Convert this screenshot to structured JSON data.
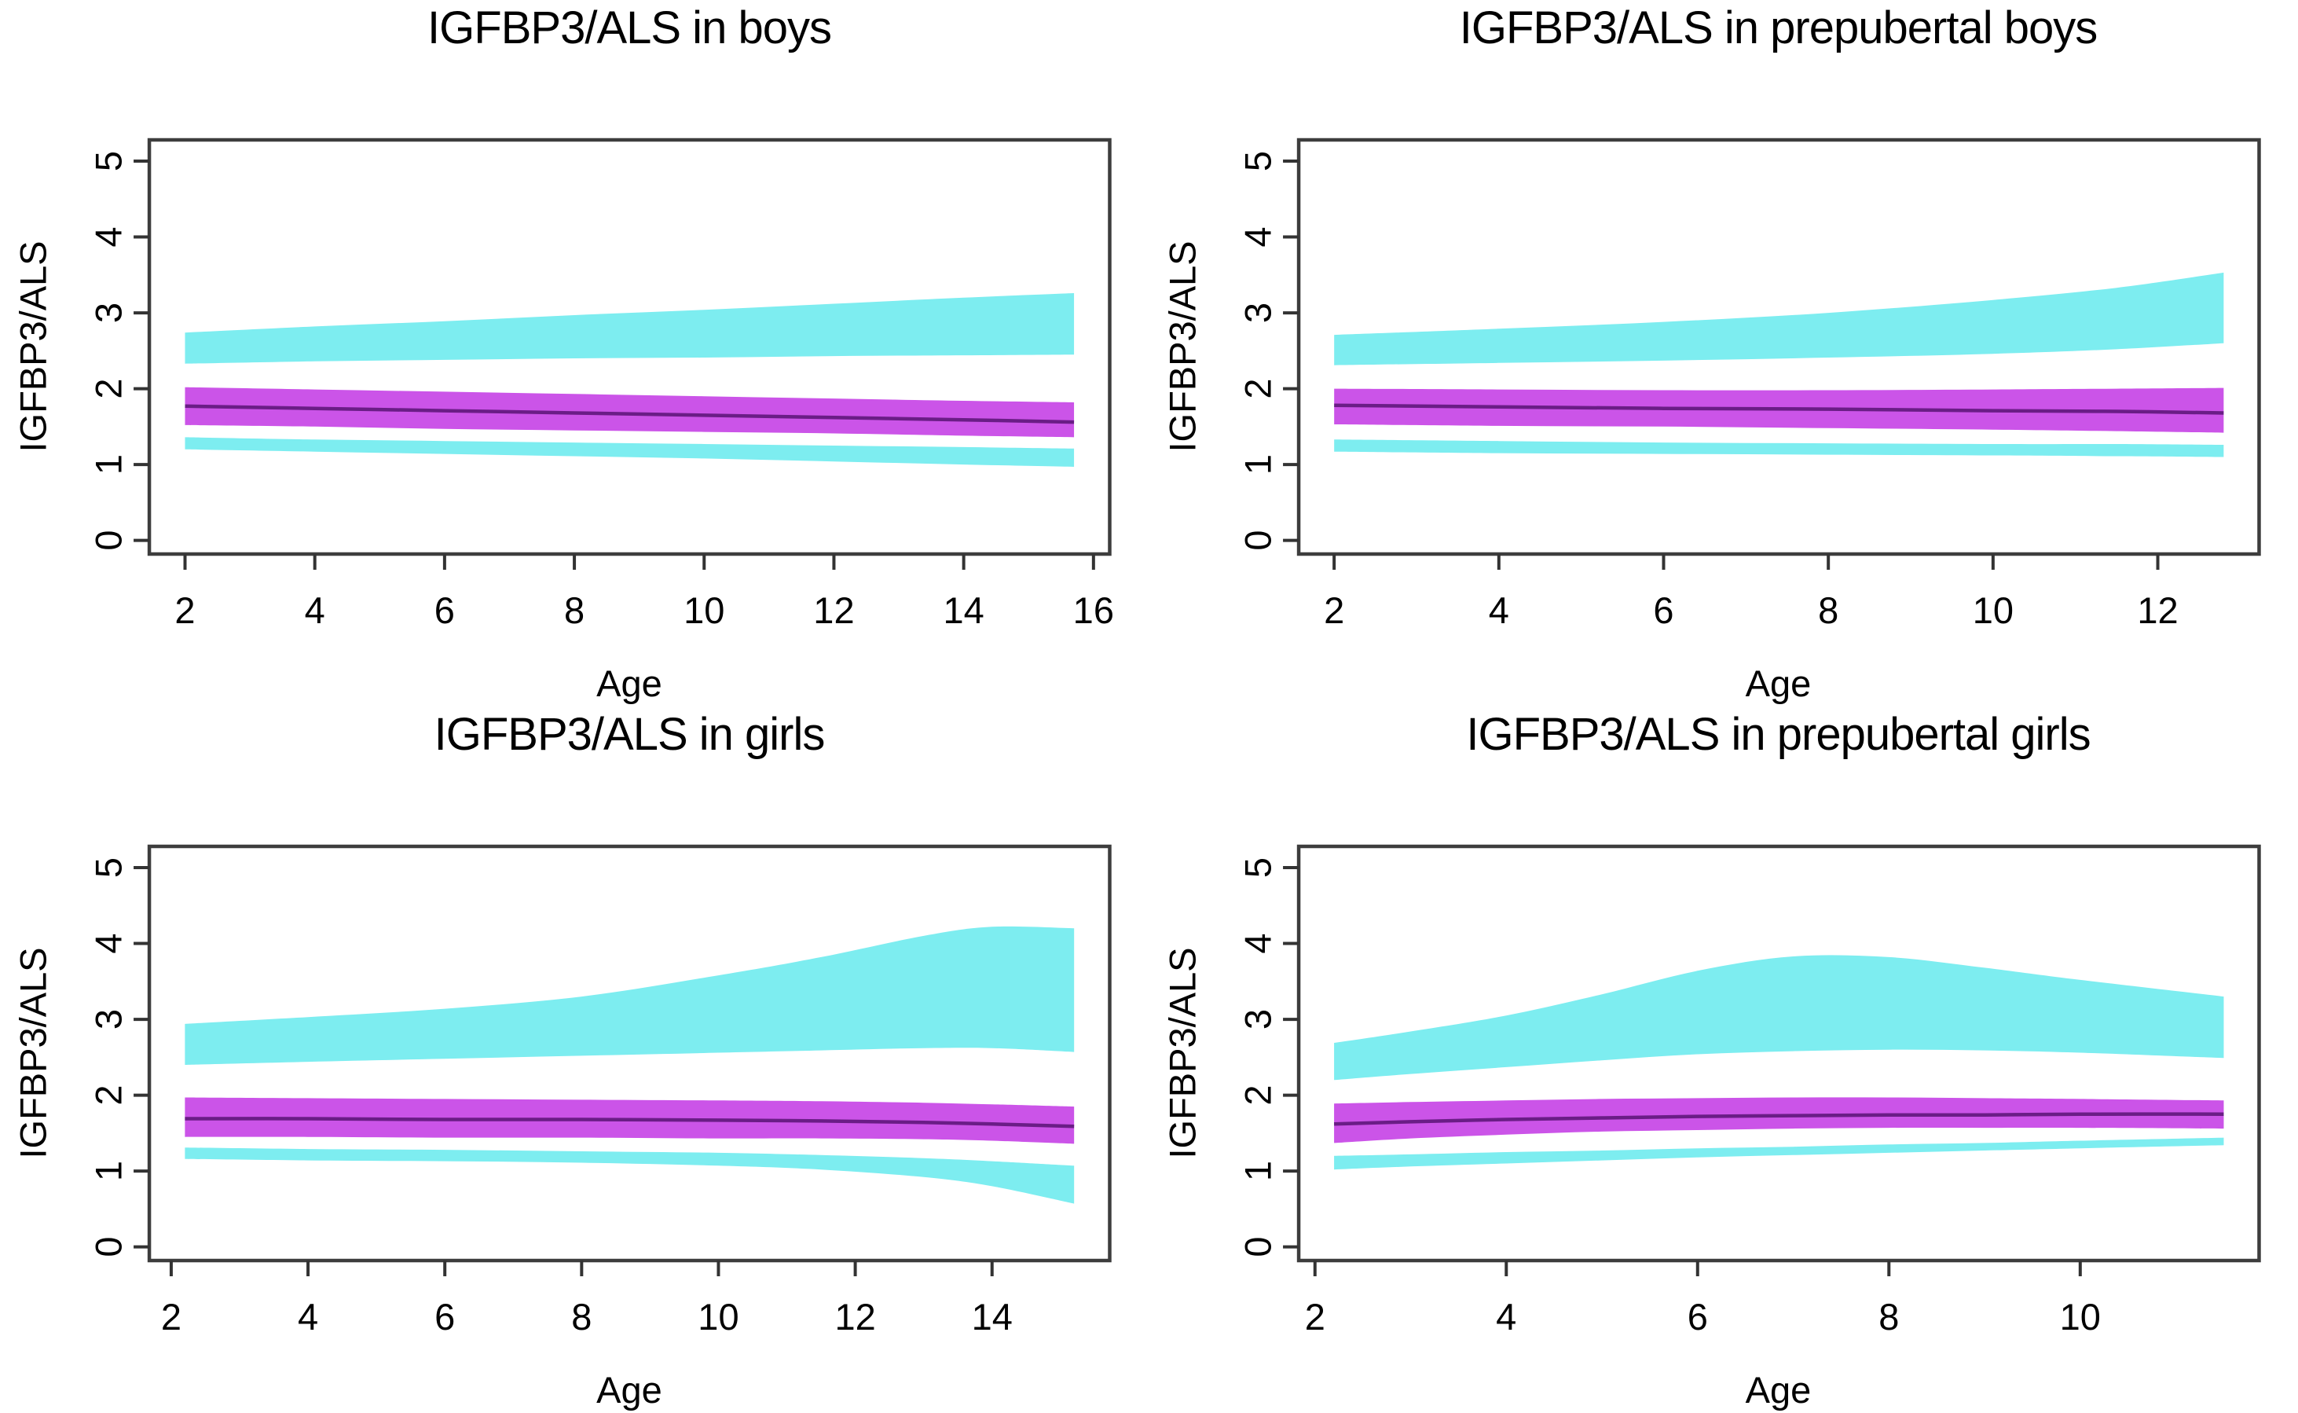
{
  "figure": {
    "background": "#FFFFFF",
    "description_labels": {
      "xlabel": "Age",
      "ylabel": "IGFBP3/ALS"
    }
  },
  "colors": {
    "outer_band": "#7DEDF0",
    "normal_band": "#CB54E8",
    "median_line": "#6A1D86",
    "axis_frame": "#3D3D3D",
    "tick": "#333333",
    "text": "#000000"
  },
  "chart_data": [
    {
      "type": "area",
      "id": "boys",
      "title": "IGFBP3/ALS in boys",
      "xlabel": "Age",
      "ylabel": "IGFBP3/ALS",
      "xlim": [
        1.45,
        16.25
      ],
      "ylim": [
        -0.18,
        5.28
      ],
      "x_ticks": [
        2,
        4,
        6,
        8,
        10,
        12,
        14,
        16
      ],
      "y_ticks": [
        0,
        1,
        2,
        3,
        4,
        5
      ],
      "grid": false,
      "legend": "none",
      "bands": {
        "upper": {
          "x": [
            2,
            4,
            6,
            8,
            10,
            12,
            14,
            15.7
          ],
          "low": [
            2.33,
            2.36,
            2.38,
            2.4,
            2.41,
            2.43,
            2.44,
            2.45
          ],
          "high": [
            2.74,
            2.82,
            2.89,
            2.97,
            3.04,
            3.12,
            3.2,
            3.26
          ]
        },
        "normal": {
          "x": [
            2,
            4,
            6,
            8,
            10,
            12,
            14,
            15.7
          ],
          "low": [
            1.52,
            1.5,
            1.47,
            1.45,
            1.43,
            1.41,
            1.38,
            1.36
          ],
          "high": [
            2.02,
            1.99,
            1.96,
            1.93,
            1.9,
            1.87,
            1.84,
            1.82
          ]
        },
        "median": {
          "x": [
            2,
            4,
            6,
            8,
            10,
            12,
            14,
            15.7
          ],
          "y": [
            1.77,
            1.74,
            1.71,
            1.68,
            1.65,
            1.62,
            1.59,
            1.56
          ]
        },
        "lower": {
          "x": [
            2,
            4,
            6,
            8,
            10,
            12,
            14,
            15.7
          ],
          "low": [
            1.2,
            1.17,
            1.14,
            1.11,
            1.08,
            1.04,
            1.0,
            0.97
          ],
          "high": [
            1.36,
            1.33,
            1.31,
            1.29,
            1.27,
            1.25,
            1.23,
            1.21
          ]
        }
      }
    },
    {
      "type": "area",
      "id": "prepubertal-boys",
      "title": "IGFBP3/ALS in prepubertal boys",
      "xlabel": "Age",
      "ylabel": "IGFBP3/ALS",
      "xlim": [
        1.57,
        13.23
      ],
      "ylim": [
        -0.18,
        5.28
      ],
      "x_ticks": [
        2,
        4,
        6,
        8,
        10,
        12
      ],
      "y_ticks": [
        0,
        1,
        2,
        3,
        4,
        5
      ],
      "grid": false,
      "legend": "none",
      "bands": {
        "upper": {
          "x": [
            2,
            4,
            6,
            8,
            10,
            11.5,
            12.8
          ],
          "low": [
            2.31,
            2.34,
            2.37,
            2.41,
            2.46,
            2.52,
            2.6
          ],
          "high": [
            2.71,
            2.79,
            2.88,
            3.0,
            3.17,
            3.33,
            3.53
          ]
        },
        "normal": {
          "x": [
            2,
            4,
            6,
            8,
            10,
            11.5,
            12.8
          ],
          "low": [
            1.53,
            1.51,
            1.5,
            1.48,
            1.46,
            1.44,
            1.42
          ],
          "high": [
            2.0,
            1.99,
            1.98,
            1.98,
            1.99,
            2.0,
            2.01
          ]
        },
        "median": {
          "x": [
            2,
            4,
            6,
            8,
            10,
            11.5,
            12.8
          ],
          "y": [
            1.78,
            1.76,
            1.74,
            1.73,
            1.71,
            1.7,
            1.68
          ]
        },
        "lower": {
          "x": [
            2,
            4,
            6,
            8,
            10,
            11.5,
            12.8
          ],
          "low": [
            1.17,
            1.15,
            1.14,
            1.13,
            1.12,
            1.11,
            1.1
          ],
          "high": [
            1.33,
            1.31,
            1.29,
            1.28,
            1.27,
            1.27,
            1.26
          ]
        }
      }
    },
    {
      "type": "area",
      "id": "girls",
      "title": "IGFBP3/ALS in girls",
      "xlabel": "Age",
      "ylabel": "IGFBP3/ALS",
      "xlim": [
        1.68,
        15.72
      ],
      "ylim": [
        -0.18,
        5.28
      ],
      "x_ticks": [
        2,
        4,
        6,
        8,
        10,
        12,
        14
      ],
      "y_ticks": [
        0,
        1,
        2,
        3,
        4,
        5
      ],
      "grid": false,
      "legend": "none",
      "bands": {
        "upper": {
          "x": [
            2.2,
            4,
            6,
            8,
            10,
            11.5,
            13,
            14,
            15.2
          ],
          "low": [
            2.4,
            2.44,
            2.48,
            2.52,
            2.56,
            2.59,
            2.62,
            2.62,
            2.57
          ],
          "high": [
            2.94,
            3.03,
            3.14,
            3.3,
            3.58,
            3.82,
            4.1,
            4.22,
            4.2
          ]
        },
        "normal": {
          "x": [
            2.2,
            4,
            6,
            8,
            10,
            11.5,
            13,
            14,
            15.2
          ],
          "low": [
            1.45,
            1.45,
            1.44,
            1.44,
            1.43,
            1.43,
            1.42,
            1.4,
            1.36
          ],
          "high": [
            1.97,
            1.96,
            1.95,
            1.94,
            1.93,
            1.92,
            1.9,
            1.88,
            1.85
          ]
        },
        "median": {
          "x": [
            2.2,
            4,
            6,
            8,
            10,
            11.5,
            13,
            14,
            15.2
          ],
          "y": [
            1.69,
            1.69,
            1.68,
            1.68,
            1.67,
            1.66,
            1.64,
            1.62,
            1.59
          ]
        },
        "lower": {
          "x": [
            2.2,
            4,
            6,
            8,
            10,
            11.5,
            13,
            14,
            15.2
          ],
          "low": [
            1.16,
            1.14,
            1.13,
            1.11,
            1.07,
            1.02,
            0.92,
            0.8,
            0.57
          ],
          "high": [
            1.31,
            1.29,
            1.28,
            1.26,
            1.24,
            1.21,
            1.17,
            1.13,
            1.07
          ]
        }
      }
    },
    {
      "type": "area",
      "id": "prepubertal-girls",
      "title": "IGFBP3/ALS in prepubertal girls",
      "xlabel": "Age",
      "ylabel": "IGFBP3/ALS",
      "xlim": [
        1.83,
        11.87
      ],
      "ylim": [
        -0.18,
        5.28
      ],
      "x_ticks": [
        2,
        4,
        6,
        8,
        10
      ],
      "y_ticks": [
        0,
        1,
        2,
        3,
        4,
        5
      ],
      "grid": false,
      "legend": "none",
      "bands": {
        "upper": {
          "x": [
            2.2,
            3,
            4,
            5,
            6,
            7,
            8,
            9,
            10,
            11.5
          ],
          "low": [
            2.2,
            2.28,
            2.37,
            2.46,
            2.54,
            2.58,
            2.6,
            2.59,
            2.56,
            2.49
          ],
          "high": [
            2.69,
            2.84,
            3.05,
            3.33,
            3.64,
            3.83,
            3.82,
            3.68,
            3.52,
            3.3
          ]
        },
        "normal": {
          "x": [
            2.2,
            3,
            4,
            5,
            6,
            7,
            8,
            9,
            10,
            11.5
          ],
          "low": [
            1.37,
            1.43,
            1.48,
            1.52,
            1.54,
            1.56,
            1.57,
            1.57,
            1.57,
            1.56
          ],
          "high": [
            1.89,
            1.91,
            1.93,
            1.95,
            1.96,
            1.97,
            1.97,
            1.96,
            1.95,
            1.93
          ]
        },
        "median": {
          "x": [
            2.2,
            3,
            4,
            5,
            6,
            7,
            8,
            9,
            10,
            11.5
          ],
          "y": [
            1.62,
            1.65,
            1.68,
            1.7,
            1.72,
            1.73,
            1.74,
            1.74,
            1.75,
            1.75
          ]
        },
        "lower": {
          "x": [
            2.2,
            3,
            4,
            5,
            6,
            7,
            8,
            9,
            10,
            11.5
          ],
          "low": [
            1.02,
            1.06,
            1.1,
            1.14,
            1.18,
            1.21,
            1.24,
            1.27,
            1.3,
            1.34
          ],
          "high": [
            1.2,
            1.22,
            1.25,
            1.27,
            1.3,
            1.32,
            1.35,
            1.37,
            1.4,
            1.44
          ]
        }
      }
    }
  ]
}
